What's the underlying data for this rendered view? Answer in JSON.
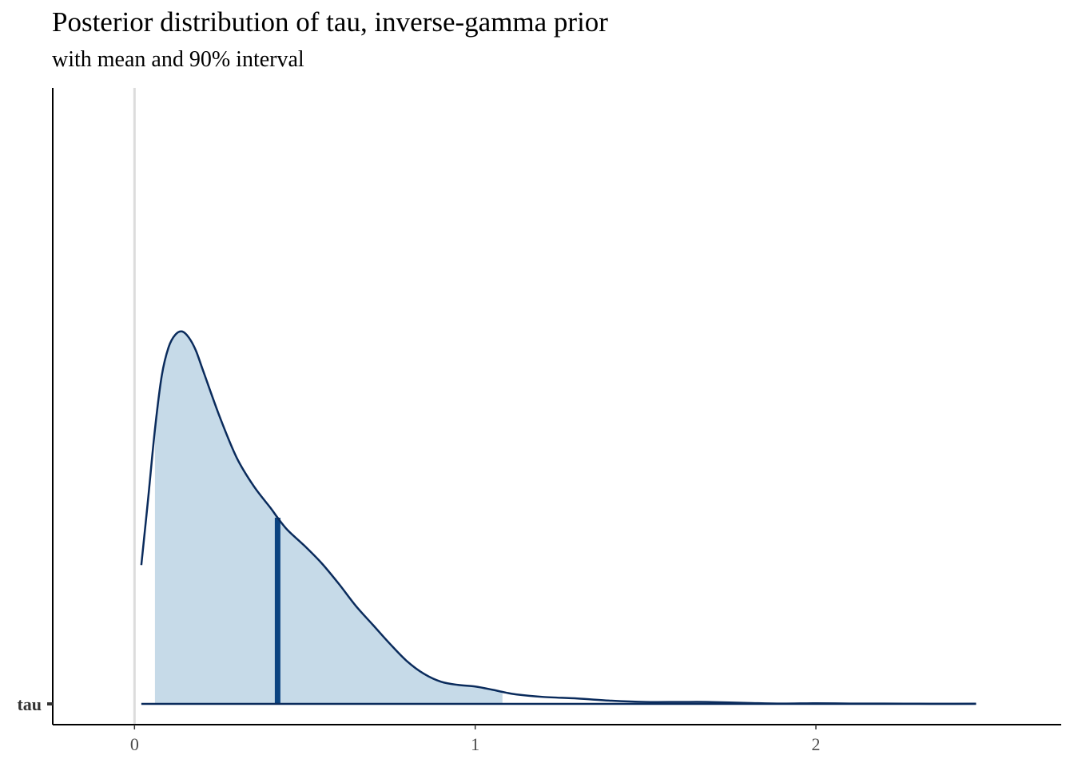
{
  "chart_data": {
    "type": "area",
    "title": "Posterior distribution of tau, inverse-gamma prior",
    "subtitle": "with mean and 90% interval",
    "xlabel": "",
    "ylabel": "",
    "parameter": "tau",
    "xlim": [
      -0.24,
      2.72
    ],
    "x_ticks": [
      0,
      1,
      2
    ],
    "y_categories": [
      "tau"
    ],
    "grid": false,
    "legend": "none",
    "mean": 0.42,
    "interval_90": [
      0.06,
      1.08
    ],
    "reference_line_x": 0,
    "density": {
      "x": [
        0.02,
        0.04,
        0.06,
        0.08,
        0.1,
        0.12,
        0.14,
        0.16,
        0.18,
        0.2,
        0.25,
        0.3,
        0.35,
        0.4,
        0.42,
        0.45,
        0.5,
        0.55,
        0.6,
        0.65,
        0.7,
        0.75,
        0.8,
        0.85,
        0.9,
        0.95,
        1.0,
        1.05,
        1.08,
        1.12,
        1.2,
        1.3,
        1.4,
        1.5,
        1.6,
        1.68,
        1.8,
        1.9,
        2.0,
        2.1,
        2.2,
        2.3,
        2.4,
        2.47
      ],
      "y": [
        0.44,
        0.65,
        0.87,
        1.04,
        1.13,
        1.17,
        1.18,
        1.16,
        1.12,
        1.06,
        0.91,
        0.78,
        0.69,
        0.62,
        0.59,
        0.55,
        0.5,
        0.445,
        0.38,
        0.31,
        0.25,
        0.19,
        0.135,
        0.095,
        0.07,
        0.06,
        0.055,
        0.045,
        0.038,
        0.03,
        0.022,
        0.017,
        0.01,
        0.006,
        0.006,
        0.006,
        0.003,
        0.001,
        0.002,
        0.001,
        0.001,
        0.0005,
        0.0003,
        0.0005
      ]
    },
    "colors": {
      "fill": "#c6dae8",
      "line": "#0a2b5c",
      "mean_line": "#0b4380",
      "reference_line": "#dcdcdc",
      "axis": "#000000"
    }
  }
}
